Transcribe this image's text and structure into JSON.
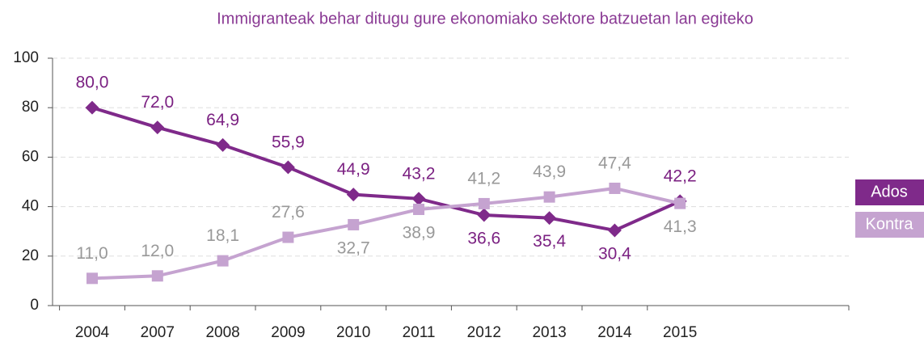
{
  "chart_data": {
    "type": "line",
    "title": "Immigranteak behar ditugu gure ekonomiako sektore batzuetan lan egiteko",
    "categories": [
      "2004",
      "2007",
      "2008",
      "2009",
      "2010",
      "2011",
      "2012",
      "2013",
      "2014",
      "2015"
    ],
    "series": [
      {
        "name": "Ados",
        "color": "#7f2a8a",
        "values": [
          80.0,
          72.0,
          64.9,
          55.9,
          44.9,
          43.2,
          36.6,
          35.4,
          30.4,
          42.2
        ],
        "value_labels": [
          "80,0",
          "72,0",
          "64,9",
          "55,9",
          "44,9",
          "43,2",
          "36,6",
          "35,4",
          "30,4",
          "42,2"
        ]
      },
      {
        "name": "Kontra",
        "color": "#c5a3d0",
        "values": [
          11.0,
          12.0,
          18.1,
          27.6,
          32.7,
          38.9,
          41.2,
          43.9,
          47.4,
          41.3
        ],
        "value_labels": [
          "11,0",
          "12,0",
          "18,1",
          "27,6",
          "32,7",
          "38,9",
          "41,2",
          "43,9",
          "47,4",
          "41,3"
        ]
      }
    ],
    "ylim": [
      0,
      100
    ],
    "yticks": [
      0,
      20,
      40,
      60,
      80,
      100
    ],
    "grid": true,
    "legend": "right"
  }
}
